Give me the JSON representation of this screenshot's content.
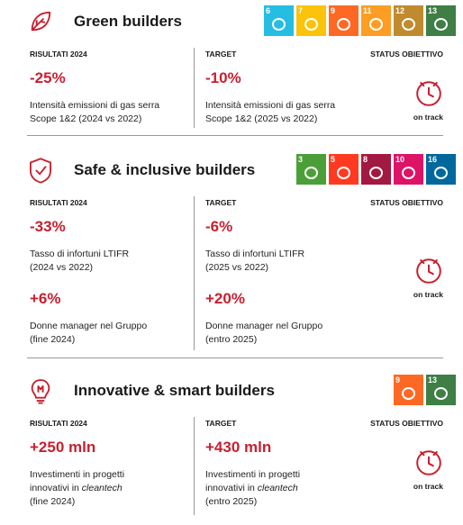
{
  "sections": [
    {
      "title": "Green builders",
      "sdgs": [
        {
          "number": "6",
          "color": "#26bde2"
        },
        {
          "number": "7",
          "color": "#fcc30b"
        },
        {
          "number": "9",
          "color": "#fd6925"
        },
        {
          "number": "11",
          "color": "#fd9d24"
        },
        {
          "number": "12",
          "color": "#bf8b2e"
        },
        {
          "number": "13",
          "color": "#3f7e44"
        }
      ],
      "headers": [
        "RISULTATI 2024",
        "TARGET",
        "STATUS OBIETTIVO"
      ],
      "metrics": [
        {
          "result": "-25%",
          "result_desc": [
            "Intensità emissioni di gas serra",
            "Scope 1&2 (2024 vs 2022)"
          ],
          "target": "-10%",
          "target_desc": [
            "Intensità emissioni di gas serra",
            "Scope 1&2 (2025 vs 2022)"
          ]
        }
      ],
      "status": "on track"
    },
    {
      "title": "Safe & inclusive builders",
      "sdgs": [
        {
          "number": "3",
          "color": "#4c9f38"
        },
        {
          "number": "5",
          "color": "#ff3a21"
        },
        {
          "number": "8",
          "color": "#a21942"
        },
        {
          "number": "10",
          "color": "#dd1367"
        },
        {
          "number": "16",
          "color": "#00689d"
        }
      ],
      "headers": [
        "RISULTATI 2024",
        "TARGET",
        "STATUS OBIETTIVO"
      ],
      "metrics": [
        {
          "result": "-33%",
          "result_desc": [
            "Tasso di infortuni LTIFR",
            "(2024 vs 2022)"
          ],
          "target": "-6%",
          "target_desc": [
            "Tasso di infortuni LTIFR",
            "(2025 vs 2022)"
          ]
        },
        {
          "result": "+6%",
          "result_desc": [
            "Donne manager nel Gruppo",
            "(fine 2024)"
          ],
          "target": "+20%",
          "target_desc": [
            "Donne manager nel Gruppo",
            "(entro 2025)"
          ]
        }
      ],
      "status": "on track"
    },
    {
      "title": "Innovative & smart builders",
      "sdgs": [
        {
          "number": "9",
          "color": "#fd6925"
        },
        {
          "number": "13",
          "color": "#3f7e44"
        }
      ],
      "headers": [
        "RISULTATI 2024",
        "TARGET",
        "STATUS OBIETTIVO"
      ],
      "metrics": [
        {
          "result": "+250 mln",
          "result_desc": [
            "Investimenti in progetti",
            [
              {
                "text": "innovativi in "
              },
              {
                "text": "cleantech",
                "italic": true
              }
            ],
            "(fine 2024)"
          ],
          "target": "+430 mln",
          "target_desc": [
            "Investimenti in progetti",
            [
              {
                "text": "innovativi in "
              },
              {
                "text": "cleantech",
                "italic": true
              }
            ],
            "(entro 2025)"
          ]
        }
      ],
      "status": "on track"
    }
  ]
}
